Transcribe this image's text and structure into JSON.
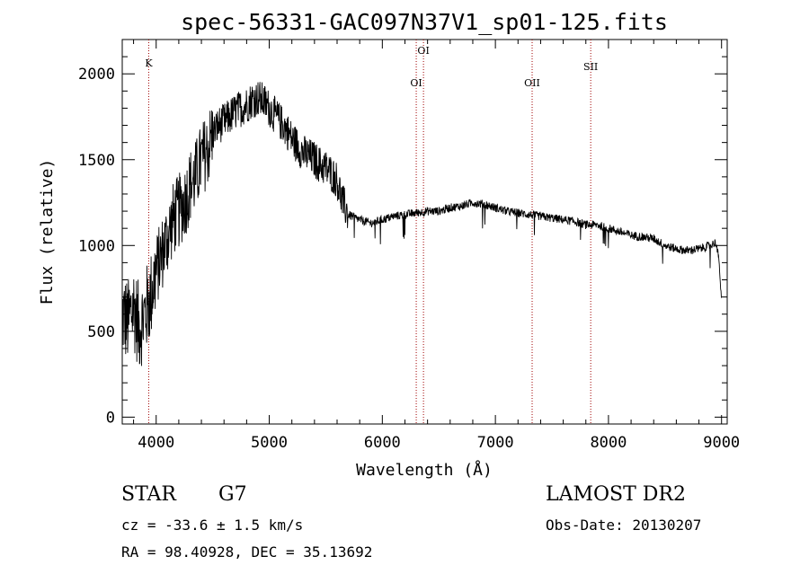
{
  "chart_data": {
    "type": "line",
    "title": "spec-56331-GAC097N37V1_sp01-125.fits",
    "xlabel": "Wavelength (Å)",
    "ylabel": "Flux (relative)",
    "xlim": [
      3700,
      9050
    ],
    "ylim": [
      -40,
      2200
    ],
    "xticks": [
      4000,
      5000,
      6000,
      7000,
      8000,
      9000
    ],
    "yticks": [
      0,
      500,
      1000,
      1500,
      2000
    ],
    "spectral_lines": [
      {
        "name": "K",
        "wavelength": 3934
      },
      {
        "name": "OI",
        "wavelength": 6300
      },
      {
        "name": "OI",
        "wavelength": 6364
      },
      {
        "name": "OII",
        "wavelength": 7325
      },
      {
        "name": "SII",
        "wavelength": 7843
      }
    ],
    "spectrum": {
      "x": [
        3700,
        3750,
        3800,
        3850,
        3900,
        3950,
        4000,
        4050,
        4100,
        4150,
        4200,
        4250,
        4300,
        4350,
        4400,
        4450,
        4500,
        4550,
        4600,
        4650,
        4700,
        4750,
        4800,
        4850,
        4900,
        4950,
        5000,
        5050,
        5100,
        5150,
        5200,
        5250,
        5300,
        5350,
        5400,
        5450,
        5500,
        5550,
        5600,
        5650,
        5700,
        5800,
        5900,
        6000,
        6100,
        6200,
        6300,
        6400,
        6500,
        6600,
        6700,
        6800,
        6900,
        7000,
        7100,
        7200,
        7300,
        7400,
        7500,
        7600,
        7700,
        7800,
        7900,
        8000,
        8100,
        8200,
        8300,
        8400,
        8500,
        8600,
        8700,
        8800,
        8900,
        8950,
        8980,
        9000
      ],
      "y": [
        600,
        550,
        650,
        520,
        600,
        700,
        850,
        950,
        1050,
        1150,
        1200,
        1250,
        1350,
        1400,
        1500,
        1550,
        1650,
        1700,
        1720,
        1750,
        1780,
        1800,
        1820,
        1850,
        1860,
        1840,
        1800,
        1760,
        1720,
        1680,
        1620,
        1580,
        1540,
        1520,
        1500,
        1470,
        1450,
        1420,
        1380,
        1250,
        1180,
        1150,
        1130,
        1150,
        1170,
        1180,
        1190,
        1200,
        1200,
        1220,
        1230,
        1250,
        1240,
        1220,
        1200,
        1190,
        1180,
        1170,
        1160,
        1150,
        1140,
        1120,
        1120,
        1100,
        1080,
        1060,
        1050,
        1040,
        1000,
        980,
        970,
        980,
        1000,
        1020,
        900,
        650
      ]
    }
  },
  "info": {
    "object_type": "STAR",
    "subclass": "G7",
    "survey": "LAMOST DR2",
    "cz": "cz = -33.6 ± 1.5 km/s",
    "obs_date": "Obs-Date: 20130207",
    "coords": "RA =  98.40928, DEC =  35.13692"
  }
}
